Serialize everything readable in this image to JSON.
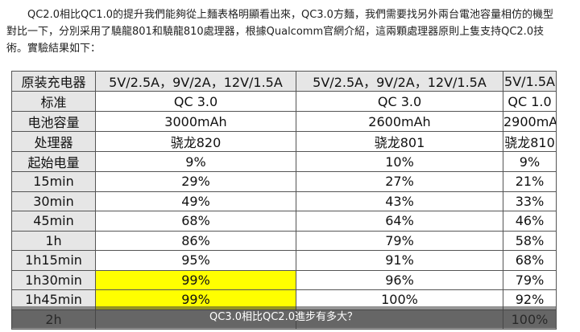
{
  "paragraph": "QC2.0相比QC1.0的提升我們能夠從上麵表格明顯看出來，QC3.0方麵，我們需要找另外兩台電池容量相仿的機型對比一下，分別采用了驍龍801和驍龍810處理器，根據Qualcomm官網介紹，這兩顆處理器原則上隻支持QC2.0技術。實驗結果如下：",
  "table": {
    "rows": [
      [
        "原装充电器",
        "5V/2.5A，9V/2A，12V/1.5A",
        "5V/2.5A，9V/2A，12V/1.5A",
        "5V/1.5A"
      ],
      [
        "标准",
        "QC 3.0",
        "QC 3.0",
        "QC 1.0"
      ],
      [
        "电池容量",
        "3000mAh",
        "2600mAh",
        "2900mAh"
      ],
      [
        "处理器",
        "骁龙820",
        "骁龙801",
        "骁龙810"
      ],
      [
        "起始电量",
        "9%",
        "10%",
        "9%"
      ],
      [
        "15min",
        "29%",
        "27%",
        "21%"
      ],
      [
        "30min",
        "49%",
        "43%",
        "33%"
      ],
      [
        "45min",
        "68%",
        "64%",
        "46%"
      ],
      [
        "1h",
        "86%",
        "79%",
        "58%"
      ],
      [
        "1h15min",
        "95%",
        "91%",
        "68%"
      ],
      [
        "1h30min",
        "99%",
        "96%",
        "79%"
      ],
      [
        "1h45min",
        "99%",
        "100%",
        "92%"
      ],
      [
        "2h",
        null,
        null,
        "100%"
      ]
    ]
  },
  "caption": "QC3.0相比QC2.0進步有多大？"
}
